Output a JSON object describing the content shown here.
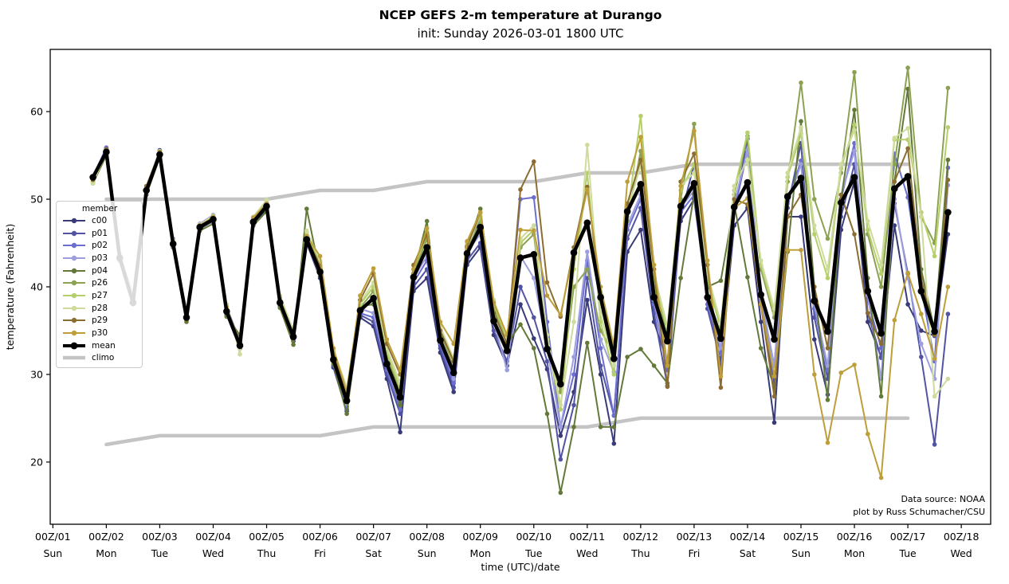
{
  "chart_data": {
    "type": "line",
    "title": "NCEP GEFS 2-m temperature at Durango",
    "subtitle": "init: Sunday 2026-03-01 1800 UTC",
    "xlabel": "time (UTC)/date",
    "ylabel": "temperature (Fahrenheit)",
    "annotation": [
      "Data source: NOAA",
      "plot by Russ Schumacher/CSU"
    ],
    "legend_title": "member",
    "legend_position": "center-left",
    "grid": false,
    "xlim": [
      -0.05,
      17.55
    ],
    "ylim": [
      12.9,
      67.1
    ],
    "y_ticks": [
      20,
      30,
      40,
      50,
      60
    ],
    "x_ticks": [
      {
        "utc": "00Z/01",
        "dow": "Sun"
      },
      {
        "utc": "00Z/02",
        "dow": "Mon"
      },
      {
        "utc": "00Z/03",
        "dow": "Tue"
      },
      {
        "utc": "00Z/04",
        "dow": "Wed"
      },
      {
        "utc": "00Z/05",
        "dow": "Thu"
      },
      {
        "utc": "00Z/06",
        "dow": "Fri"
      },
      {
        "utc": "00Z/07",
        "dow": "Sat"
      },
      {
        "utc": "00Z/08",
        "dow": "Sun"
      },
      {
        "utc": "00Z/09",
        "dow": "Mon"
      },
      {
        "utc": "00Z/10",
        "dow": "Tue"
      },
      {
        "utc": "00Z/11",
        "dow": "Wed"
      },
      {
        "utc": "00Z/12",
        "dow": "Thu"
      },
      {
        "utc": "00Z/13",
        "dow": "Fri"
      },
      {
        "utc": "00Z/14",
        "dow": "Sat"
      },
      {
        "utc": "00Z/15",
        "dow": "Sun"
      },
      {
        "utc": "00Z/16",
        "dow": "Mon"
      },
      {
        "utc": "00Z/17",
        "dow": "Tue"
      },
      {
        "utc": "00Z/18",
        "dow": "Wed"
      }
    ],
    "time_start_day": 0.75,
    "time_step_days": 0.25,
    "climo_color": "#c4c4c4",
    "climo": {
      "name": "climo",
      "x_days": [
        1,
        2,
        3,
        4,
        5,
        6,
        7,
        8,
        9,
        10,
        11,
        12,
        13,
        14,
        15,
        16
      ],
      "max": [
        50,
        50,
        50,
        50,
        51,
        51,
        52,
        52,
        52,
        53,
        53,
        54,
        54,
        54,
        54,
        54
      ],
      "min": [
        22,
        23,
        23,
        23,
        23,
        24,
        24,
        24,
        24,
        24,
        25,
        25,
        25,
        25,
        25,
        25
      ]
    },
    "mean": {
      "name": "mean",
      "color": "#000000",
      "values": [
        52.5,
        55.4,
        43.3,
        38.2,
        51.0,
        55.1,
        44.9,
        36.5,
        46.8,
        47.7,
        37.2,
        33.3,
        47.4,
        49.2,
        38.2,
        34.3,
        45.4,
        41.7,
        31.7,
        27.0,
        37.3,
        38.7,
        31.2,
        27.4,
        41.1,
        44.5,
        33.9,
        30.2,
        43.8,
        46.8,
        36.1,
        32.7,
        43.3,
        43.7,
        32.9,
        28.9,
        43.9,
        47.3,
        38.8,
        31.8,
        48.6,
        51.7,
        38.8,
        33.8,
        49.2,
        51.8,
        38.8,
        34.1,
        49.1,
        51.9,
        39.1,
        34.0,
        50.3,
        52.4,
        38.4,
        34.9,
        49.6,
        52.5,
        39.5,
        34.7,
        51.2,
        52.6,
        39.5,
        34.9,
        48.5
      ]
    },
    "members": [
      {
        "name": "c00",
        "color": "#393b79",
        "values": [
          52.3,
          55.8,
          43.0,
          38.8,
          51.2,
          55.6,
          44.5,
          36.2,
          46.5,
          47.9,
          36.8,
          33.0,
          47.0,
          48.8,
          37.8,
          33.8,
          45.0,
          41.0,
          30.8,
          25.8,
          36.5,
          35.5,
          29.5,
          23.4,
          39.5,
          41.0,
          32.5,
          28.0,
          42.5,
          44.5,
          34.5,
          31.0,
          38.0,
          34.1,
          30.6,
          23.0,
          28.0,
          38.5,
          30.0,
          22.1,
          44.0,
          46.5,
          36.0,
          31.4,
          47.5,
          50.0,
          38.5,
          31.0,
          47.0,
          49.0,
          36.0,
          24.5,
          48.0,
          48.0,
          34.0,
          27.7,
          46.5,
          52.0,
          36.0,
          32.0,
          47.0,
          38.0,
          35.0,
          34.4,
          46.0
        ]
      },
      {
        "name": "p01",
        "color": "#5254a3",
        "values": [
          52.4,
          55.6,
          43.2,
          38.6,
          51.0,
          55.3,
          44.6,
          36.4,
          46.6,
          47.5,
          37.0,
          33.2,
          47.2,
          49.0,
          38.0,
          34.0,
          45.2,
          41.2,
          31.0,
          26.0,
          36.8,
          36.0,
          30.0,
          25.5,
          40.0,
          42.0,
          33.0,
          28.5,
          43.0,
          45.0,
          35.0,
          31.5,
          40.0,
          36.5,
          31.5,
          20.3,
          26.5,
          41.0,
          31.0,
          25.3,
          45.5,
          49.0,
          37.0,
          28.7,
          48.0,
          54.0,
          37.5,
          31.5,
          48.5,
          56.9,
          38.0,
          29.0,
          49.0,
          56.4,
          36.5,
          29.5,
          48.0,
          54.0,
          37.0,
          31.9,
          49.5,
          41.5,
          32.0,
          22.0,
          36.9
        ]
      },
      {
        "name": "p02",
        "color": "#6b6ecf",
        "values": [
          52.6,
          55.9,
          43.5,
          39.0,
          51.3,
          55.4,
          45.2,
          36.8,
          47.0,
          48.0,
          37.5,
          33.5,
          47.6,
          49.4,
          38.5,
          34.5,
          45.6,
          42.0,
          31.5,
          26.3,
          37.0,
          36.5,
          30.5,
          26.0,
          40.5,
          43.0,
          33.5,
          29.0,
          43.5,
          48.0,
          38.0,
          34.0,
          50.0,
          50.2,
          36.0,
          24.0,
          30.0,
          43.0,
          33.0,
          25.3,
          46.5,
          50.0,
          38.0,
          30.5,
          48.5,
          50.5,
          38.0,
          32.5,
          48.5,
          55.6,
          38.5,
          31.0,
          49.5,
          54.4,
          37.5,
          30.5,
          50.0,
          56.4,
          38.5,
          33.0,
          55.2,
          50.2,
          40.0,
          31.5,
          53.6
        ]
      },
      {
        "name": "p03",
        "color": "#9c9ede",
        "values": [
          52.2,
          55.2,
          43.8,
          39.2,
          50.8,
          54.8,
          45.5,
          37.0,
          47.2,
          48.2,
          37.8,
          33.8,
          47.8,
          49.6,
          38.8,
          34.8,
          45.8,
          42.5,
          32.0,
          26.6,
          37.5,
          37.0,
          31.0,
          26.5,
          41.0,
          43.5,
          34.0,
          29.5,
          44.0,
          46.0,
          36.0,
          30.5,
          43.5,
          41.0,
          33.0,
          24.0,
          32.0,
          44.0,
          34.0,
          30.3,
          47.0,
          50.5,
          38.5,
          31.0,
          49.0,
          51.0,
          38.5,
          33.0,
          49.5,
          55.6,
          39.0,
          31.0,
          49.5,
          54.0,
          38.0,
          31.0,
          50.5,
          55.5,
          39.0,
          29.5,
          50.0,
          41.0,
          33.5,
          29.5,
          51.6
        ]
      },
      {
        "name": "p04",
        "color": "#637939",
        "values": [
          51.8,
          55.0,
          43.0,
          38.0,
          50.5,
          54.8,
          44.5,
          36.0,
          46.4,
          47.2,
          36.6,
          34.5,
          47.0,
          48.6,
          37.6,
          33.4,
          48.9,
          41.5,
          31.2,
          25.5,
          37.8,
          38.0,
          31.5,
          26.5,
          41.5,
          47.5,
          34.5,
          31.5,
          44.5,
          48.9,
          37.0,
          33.5,
          35.7,
          33.0,
          25.5,
          16.5,
          24.0,
          33.6,
          24.0,
          24.0,
          32.0,
          32.9,
          31.0,
          29.0,
          41.0,
          50.6,
          40.0,
          40.7,
          49.5,
          41.1,
          33.0,
          28.6,
          44.0,
          58.9,
          40.0,
          27.1,
          50.0,
          60.2,
          41.0,
          27.5,
          52.0,
          62.6,
          42.0,
          35.0,
          54.5
        ]
      },
      {
        "name": "p26",
        "color": "#8ca252",
        "values": [
          52.0,
          55.2,
          43.4,
          38.4,
          50.8,
          55.0,
          44.8,
          36.6,
          46.6,
          47.6,
          37.4,
          33.6,
          47.4,
          49.0,
          38.4,
          34.2,
          46.0,
          42.2,
          32.2,
          27.2,
          37.6,
          39.5,
          32.0,
          28.0,
          41.5,
          45.5,
          34.8,
          31.0,
          44.2,
          47.5,
          37.5,
          33.8,
          44.5,
          46.0,
          33.5,
          28.0,
          40.0,
          42.0,
          35.0,
          32.4,
          47.5,
          55.5,
          40.0,
          34.5,
          50.0,
          58.6,
          40.5,
          35.5,
          50.5,
          57.2,
          42.0,
          36.5,
          52.0,
          63.3,
          50.0,
          45.5,
          53.0,
          64.5,
          46.0,
          40.0,
          54.0,
          65.0,
          48.0,
          45.0,
          62.7
        ]
      },
      {
        "name": "p27",
        "color": "#b5cf6b",
        "values": [
          51.9,
          55.3,
          43.6,
          38.7,
          51.0,
          55.2,
          45.0,
          36.9,
          46.9,
          47.8,
          37.7,
          33.2,
          47.7,
          49.3,
          38.7,
          34.6,
          46.2,
          42.8,
          32.5,
          27.5,
          38.0,
          40.0,
          32.5,
          28.5,
          42.0,
          46.0,
          35.2,
          31.2,
          44.8,
          48.0,
          38.0,
          34.0,
          45.0,
          46.5,
          34.0,
          26.0,
          42.0,
          53.0,
          36.0,
          30.0,
          48.0,
          59.5,
          41.0,
          35.0,
          51.0,
          54.0,
          41.0,
          35.0,
          51.0,
          57.6,
          42.5,
          37.0,
          52.5,
          57.5,
          46.0,
          41.0,
          53.5,
          58.5,
          46.5,
          41.5,
          56.8,
          56.8,
          48.5,
          43.5,
          58.2
        ]
      },
      {
        "name": "p28",
        "color": "#cedb9c",
        "values": [
          51.8,
          55.5,
          43.8,
          39.0,
          51.2,
          55.5,
          45.3,
          37.2,
          47.1,
          48.1,
          38.0,
          32.3,
          48.0,
          49.9,
          39.0,
          35.0,
          46.4,
          43.0,
          32.8,
          28.5,
          38.2,
          40.5,
          33.0,
          29.0,
          42.3,
          46.5,
          35.5,
          31.8,
          45.0,
          48.3,
          38.5,
          34.3,
          45.5,
          47.0,
          34.5,
          26.5,
          36.0,
          56.2,
          37.0,
          31.0,
          48.5,
          54.0,
          41.5,
          35.5,
          51.5,
          53.0,
          41.5,
          35.8,
          51.5,
          54.5,
          43.0,
          37.5,
          53.0,
          58.2,
          47.0,
          42.0,
          54.0,
          57.9,
          47.5,
          42.5,
          57.0,
          58.1,
          48.0,
          27.5,
          29.5
        ]
      },
      {
        "name": "p29",
        "color": "#8c6d31",
        "values": [
          52.2,
          55.7,
          43.1,
          38.3,
          51.5,
          55.4,
          44.7,
          36.3,
          47.0,
          47.9,
          37.1,
          33.4,
          47.6,
          49.1,
          38.1,
          34.1,
          45.6,
          42.4,
          32.4,
          27.8,
          38.5,
          41.5,
          33.5,
          30.0,
          42.5,
          46.0,
          35.0,
          31.5,
          44.6,
          48.5,
          37.0,
          33.5,
          51.1,
          54.3,
          40.5,
          36.6,
          44.5,
          51.4,
          39.0,
          33.0,
          49.5,
          54.5,
          42.0,
          28.6,
          52.0,
          55.2,
          42.5,
          28.5,
          50.0,
          49.4,
          38.0,
          27.5,
          48.0,
          50.5,
          40.0,
          33.0,
          50.5,
          46.0,
          37.0,
          33.5,
          52.0,
          55.8,
          41.0,
          34.5,
          52.2
        ]
      },
      {
        "name": "p30",
        "color": "#bd9e39",
        "values": [
          52.4,
          55.6,
          43.4,
          38.5,
          51.1,
          55.3,
          45.1,
          36.7,
          46.8,
          48.0,
          37.6,
          33.7,
          47.9,
          49.5,
          38.6,
          34.4,
          45.8,
          43.5,
          33.0,
          28.0,
          39.0,
          42.1,
          34.0,
          30.5,
          42.0,
          46.7,
          36.0,
          33.5,
          45.2,
          48.5,
          38.2,
          34.5,
          46.5,
          46.4,
          39.0,
          36.8,
          44.0,
          51.1,
          40.0,
          33.2,
          52.0,
          57.1,
          42.5,
          31.0,
          51.5,
          57.8,
          43.0,
          29.8,
          49.0,
          50.1,
          38.0,
          29.8,
          44.2,
          44.2,
          30.0,
          22.2,
          30.2,
          31.1,
          23.2,
          18.2,
          36.2,
          41.6,
          36.9,
          31.8,
          40.0
        ]
      }
    ]
  }
}
